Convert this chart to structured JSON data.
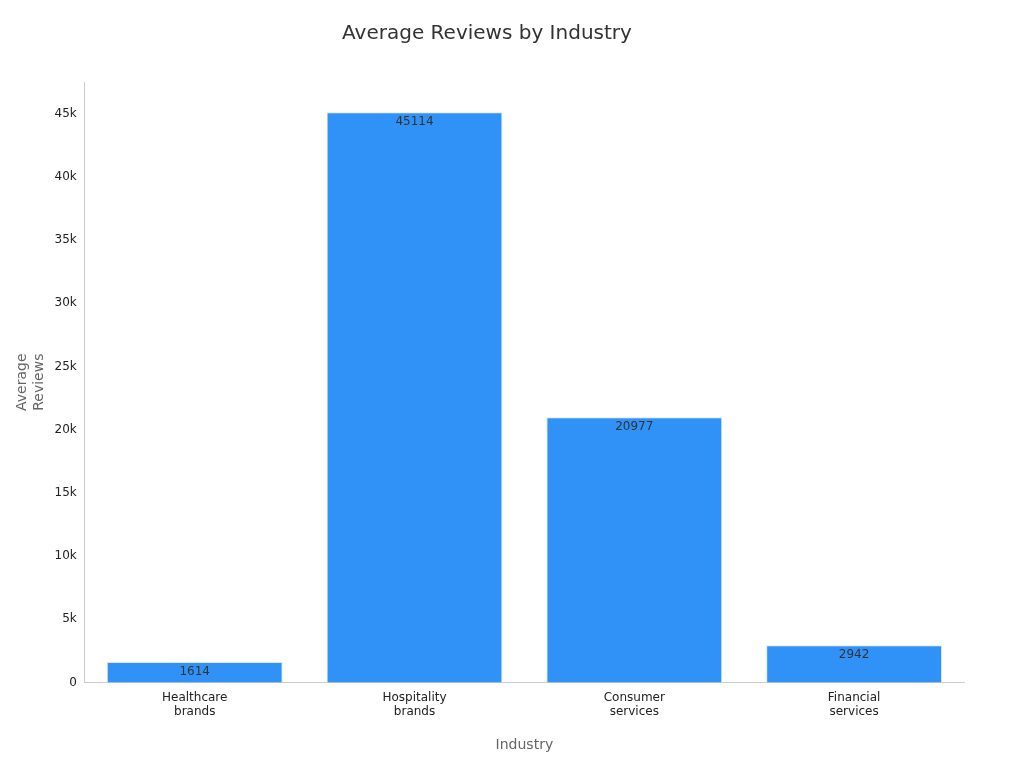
{
  "chart_data": {
    "type": "bar",
    "title": "Average Reviews by Industry",
    "xlabel": "Industry",
    "ylabel": "Average Reviews",
    "categories": [
      "Healthcare brands",
      "Hospitality brands",
      "Consumer services",
      "Financial services"
    ],
    "values": [
      1614,
      45114,
      20977,
      2942
    ],
    "color": "#3092f7",
    "data_labels": true,
    "grid": false,
    "legend": false,
    "ylim": [
      0,
      47500
    ],
    "yticks": [
      {
        "value": 0,
        "label": "0"
      },
      {
        "value": 5000,
        "label": "5k"
      },
      {
        "value": 10000,
        "label": "10k"
      },
      {
        "value": 15000,
        "label": "15k"
      },
      {
        "value": 20000,
        "label": "20k"
      },
      {
        "value": 25000,
        "label": "25k"
      },
      {
        "value": 30000,
        "label": "30k"
      },
      {
        "value": 35000,
        "label": "35k"
      },
      {
        "value": 40000,
        "label": "40k"
      },
      {
        "value": 45000,
        "label": "45k"
      }
    ]
  }
}
